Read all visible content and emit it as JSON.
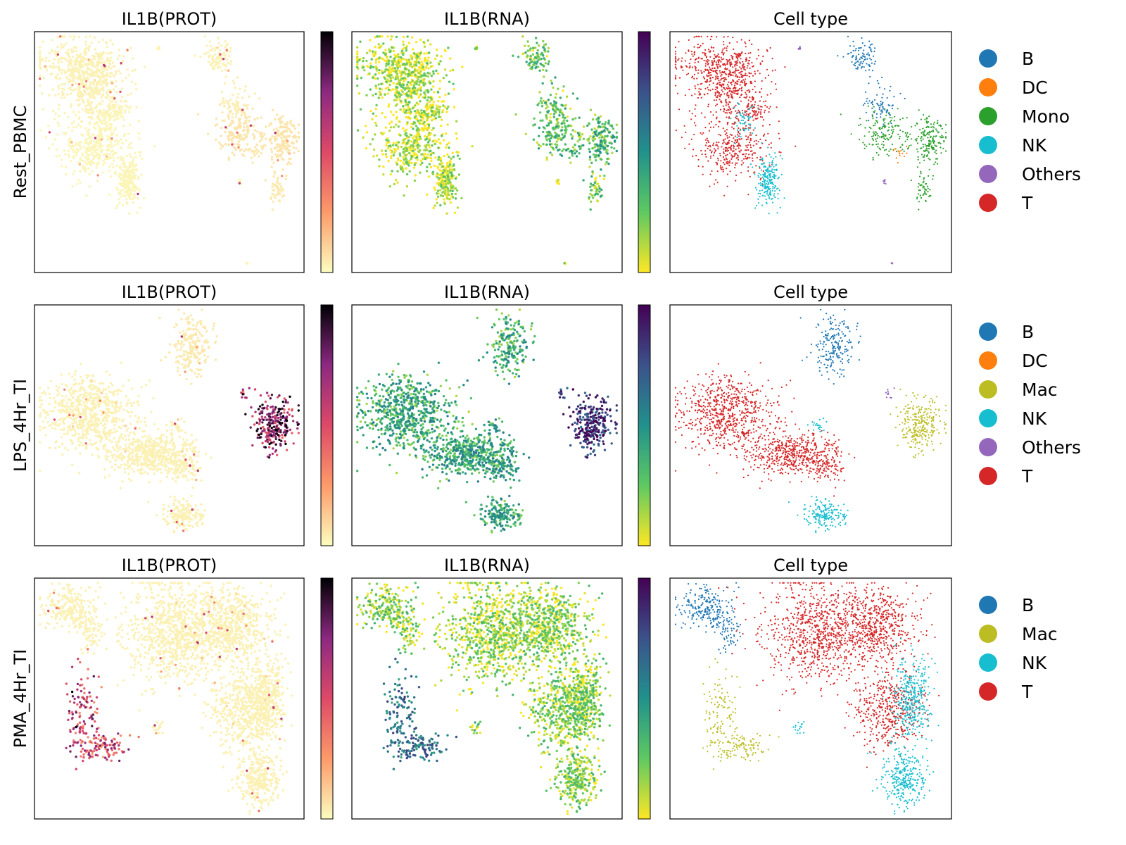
{
  "figure": {
    "rows": [
      {
        "row_label": "Rest_PBMC",
        "panels": {
          "prot": {
            "title": "IL1B(PROT)",
            "colormap": "magma_r"
          },
          "rna": {
            "title": "IL1B(RNA)",
            "colormap": "viridis_r"
          },
          "celltype": {
            "title": "Cell type"
          }
        },
        "legend": [
          {
            "label": "B",
            "color": "#1f77b4"
          },
          {
            "label": "DC",
            "color": "#ff7f0e"
          },
          {
            "label": "Mono",
            "color": "#2ca02c"
          },
          {
            "label": "NK",
            "color": "#17becf"
          },
          {
            "label": "Others",
            "color": "#9467bd"
          },
          {
            "label": "T",
            "color": "#d62728"
          }
        ]
      },
      {
        "row_label": "LPS_4Hr_TI",
        "panels": {
          "prot": {
            "title": "IL1B(PROT)",
            "colormap": "magma_r"
          },
          "rna": {
            "title": "IL1B(RNA)",
            "colormap": "viridis_r"
          },
          "celltype": {
            "title": "Cell type"
          }
        },
        "legend": [
          {
            "label": "B",
            "color": "#1f77b4"
          },
          {
            "label": "DC",
            "color": "#ff7f0e"
          },
          {
            "label": "Mac",
            "color": "#bcbd22"
          },
          {
            "label": "NK",
            "color": "#17becf"
          },
          {
            "label": "Others",
            "color": "#9467bd"
          },
          {
            "label": "T",
            "color": "#d62728"
          }
        ]
      },
      {
        "row_label": "PMA_4Hr_TI",
        "panels": {
          "prot": {
            "title": "IL1B(PROT)",
            "colormap": "magma_r"
          },
          "rna": {
            "title": "IL1B(RNA)",
            "colormap": "viridis_r"
          },
          "celltype": {
            "title": "Cell type"
          }
        },
        "legend": [
          {
            "label": "B",
            "color": "#1f77b4"
          },
          {
            "label": "Mac",
            "color": "#bcbd22"
          },
          {
            "label": "NK",
            "color": "#17becf"
          },
          {
            "label": "T",
            "color": "#d62728"
          }
        ]
      }
    ]
  },
  "chart_data": [
    {
      "type": "scatter",
      "row": "Rest_PBMC",
      "title": "IL1B(PROT)",
      "xlabel": "",
      "ylabel": "Rest_PBMC",
      "colorbar": true,
      "colormap": "magma_r",
      "clusters": [
        {
          "cx": 0.17,
          "cy": 0.13,
          "sx": 0.1,
          "sy": 0.07,
          "n": 320,
          "cell_type": "T",
          "prot": 0.03,
          "rna": 0.06
        },
        {
          "cx": 0.22,
          "cy": 0.23,
          "sx": 0.09,
          "sy": 0.1,
          "n": 360,
          "cell_type": "T",
          "prot": 0.03,
          "rna": 0.06
        },
        {
          "cx": 0.22,
          "cy": 0.48,
          "sx": 0.09,
          "sy": 0.09,
          "n": 330,
          "cell_type": "T",
          "prot": 0.02,
          "rna": 0.05
        },
        {
          "cx": 0.3,
          "cy": 0.33,
          "sx": 0.04,
          "sy": 0.03,
          "n": 60,
          "cell_type": "T",
          "prot": 0.02,
          "rna": 0.06
        },
        {
          "cx": 0.26,
          "cy": 0.37,
          "sx": 0.03,
          "sy": 0.05,
          "n": 50,
          "cell_type": "NK",
          "prot": 0.02,
          "rna": 0.05
        },
        {
          "cx": 0.35,
          "cy": 0.62,
          "sx": 0.03,
          "sy": 0.07,
          "n": 200,
          "cell_type": "NK",
          "prot": 0.02,
          "rna": 0.07
        },
        {
          "cx": 0.68,
          "cy": 0.1,
          "sx": 0.04,
          "sy": 0.04,
          "n": 90,
          "cell_type": "B",
          "prot": 0.03,
          "rna": 0.2
        },
        {
          "cx": 0.75,
          "cy": 0.3,
          "sx": 0.04,
          "sy": 0.07,
          "n": 70,
          "cell_type": "B",
          "prot": 0.04,
          "rna": 0.22
        },
        {
          "cx": 0.76,
          "cy": 0.42,
          "sx": 0.06,
          "sy": 0.06,
          "n": 150,
          "cell_type": "Mono",
          "prot": 0.06,
          "rna": 0.25
        },
        {
          "cx": 0.92,
          "cy": 0.45,
          "sx": 0.04,
          "sy": 0.07,
          "n": 170,
          "cell_type": "Mono",
          "prot": 0.06,
          "rna": 0.3
        },
        {
          "cx": 0.9,
          "cy": 0.65,
          "sx": 0.02,
          "sy": 0.05,
          "n": 50,
          "cell_type": "Mono",
          "prot": 0.05,
          "rna": 0.2
        },
        {
          "cx": 0.81,
          "cy": 0.51,
          "sx": 0.02,
          "sy": 0.02,
          "n": 15,
          "cell_type": "DC",
          "prot": 0.05,
          "rna": 0.3
        },
        {
          "cx": 0.46,
          "cy": 0.07,
          "sx": 0.005,
          "sy": 0.005,
          "n": 8,
          "cell_type": "Others",
          "prot": 0.02,
          "rna": 0.05
        },
        {
          "cx": 0.76,
          "cy": 0.62,
          "sx": 0.005,
          "sy": 0.01,
          "n": 8,
          "cell_type": "Others",
          "prot": 0.02,
          "rna": 0.05
        },
        {
          "cx": 0.79,
          "cy": 0.96,
          "sx": 0.003,
          "sy": 0.003,
          "n": 3,
          "cell_type": "Others",
          "prot": 0.02,
          "rna": 0.05
        }
      ]
    },
    {
      "type": "scatter",
      "row": "Rest_PBMC",
      "title": "IL1B(RNA)",
      "xlabel": "",
      "ylabel": "",
      "colorbar": true,
      "colormap": "viridis_r",
      "clusters": "same as IL1B(PROT) in this row"
    },
    {
      "type": "scatter",
      "row": "Rest_PBMC",
      "title": "Cell type",
      "xlabel": "",
      "ylabel": "",
      "legend": [
        "B",
        "DC",
        "Mono",
        "NK",
        "Others",
        "T"
      ],
      "legend_placement": "right",
      "clusters": "same as IL1B(PROT) in this row"
    },
    {
      "type": "scatter",
      "row": "LPS_4Hr_TI",
      "title": "IL1B(PROT)",
      "xlabel": "",
      "ylabel": "LPS_4Hr_TI",
      "colorbar": true,
      "colormap": "magma_r",
      "clusters": [
        {
          "cx": 0.2,
          "cy": 0.45,
          "sx": 0.11,
          "sy": 0.1,
          "n": 700,
          "cell_type": "T",
          "prot": 0.03,
          "rna": 0.35
        },
        {
          "cx": 0.42,
          "cy": 0.62,
          "sx": 0.1,
          "sy": 0.06,
          "n": 450,
          "cell_type": "T",
          "prot": 0.03,
          "rna": 0.38
        },
        {
          "cx": 0.55,
          "cy": 0.65,
          "sx": 0.05,
          "sy": 0.05,
          "n": 150,
          "cell_type": "T",
          "prot": 0.03,
          "rna": 0.38
        },
        {
          "cx": 0.55,
          "cy": 0.87,
          "sx": 0.05,
          "sy": 0.04,
          "n": 170,
          "cell_type": "NK",
          "prot": 0.03,
          "rna": 0.38
        },
        {
          "cx": 0.58,
          "cy": 0.17,
          "sx": 0.05,
          "sy": 0.09,
          "n": 200,
          "cell_type": "B",
          "prot": 0.05,
          "rna": 0.35
        },
        {
          "cx": 0.89,
          "cy": 0.5,
          "sx": 0.05,
          "sy": 0.07,
          "n": 260,
          "cell_type": "Mac",
          "prot": 0.7,
          "rna": 0.85
        },
        {
          "cx": 0.52,
          "cy": 0.5,
          "sx": 0.02,
          "sy": 0.02,
          "n": 20,
          "cell_type": "NK",
          "prot": 0.03,
          "rna": 0.4
        },
        {
          "cx": 0.78,
          "cy": 0.37,
          "sx": 0.01,
          "sy": 0.02,
          "n": 10,
          "cell_type": "Others",
          "prot": 0.5,
          "rna": 0.7
        }
      ]
    },
    {
      "type": "scatter",
      "row": "LPS_4Hr_TI",
      "title": "IL1B(RNA)",
      "xlabel": "",
      "ylabel": "",
      "colorbar": true,
      "colormap": "viridis_r",
      "clusters": "same as IL1B(PROT) in this row"
    },
    {
      "type": "scatter",
      "row": "LPS_4Hr_TI",
      "title": "Cell type",
      "xlabel": "",
      "ylabel": "",
      "legend": [
        "B",
        "DC",
        "Mac",
        "NK",
        "Others",
        "T"
      ],
      "legend_placement": "right",
      "clusters": "same as IL1B(PROT) in this row"
    },
    {
      "type": "scatter",
      "row": "PMA_4Hr_TI",
      "title": "IL1B(PROT)",
      "xlabel": "",
      "ylabel": "PMA_4Hr_TI",
      "colorbar": true,
      "colormap": "magma_r",
      "clusters": [
        {
          "cx": 0.12,
          "cy": 0.12,
          "sx": 0.06,
          "sy": 0.06,
          "n": 200,
          "cell_type": "B",
          "prot": 0.03,
          "rna": 0.15
        },
        {
          "cx": 0.2,
          "cy": 0.22,
          "sx": 0.03,
          "sy": 0.06,
          "n": 80,
          "cell_type": "B",
          "prot": 0.03,
          "rna": 0.15
        },
        {
          "cx": 0.18,
          "cy": 0.58,
          "sx": 0.04,
          "sy": 0.12,
          "n": 110,
          "cell_type": "Mac",
          "prot": 0.55,
          "rna": 0.6
        },
        {
          "cx": 0.25,
          "cy": 0.7,
          "sx": 0.06,
          "sy": 0.04,
          "n": 110,
          "cell_type": "Mac",
          "prot": 0.5,
          "rna": 0.6
        },
        {
          "cx": 0.53,
          "cy": 0.22,
          "sx": 0.14,
          "sy": 0.14,
          "n": 900,
          "cell_type": "T",
          "prot": 0.03,
          "rna": 0.12
        },
        {
          "cx": 0.74,
          "cy": 0.2,
          "sx": 0.09,
          "sy": 0.1,
          "n": 500,
          "cell_type": "T",
          "prot": 0.03,
          "rna": 0.12
        },
        {
          "cx": 0.78,
          "cy": 0.55,
          "sx": 0.08,
          "sy": 0.1,
          "n": 450,
          "cell_type": "T",
          "prot": 0.03,
          "rna": 0.15
        },
        {
          "cx": 0.86,
          "cy": 0.5,
          "sx": 0.05,
          "sy": 0.11,
          "n": 350,
          "cell_type": "NK",
          "prot": 0.03,
          "rna": 0.15
        },
        {
          "cx": 0.83,
          "cy": 0.83,
          "sx": 0.05,
          "sy": 0.08,
          "n": 300,
          "cell_type": "NK",
          "prot": 0.03,
          "rna": 0.15
        },
        {
          "cx": 0.46,
          "cy": 0.62,
          "sx": 0.02,
          "sy": 0.02,
          "n": 15,
          "cell_type": "NK",
          "prot": 0.03,
          "rna": 0.2
        }
      ]
    },
    {
      "type": "scatter",
      "row": "PMA_4Hr_TI",
      "title": "IL1B(RNA)",
      "xlabel": "",
      "ylabel": "",
      "colorbar": true,
      "colormap": "viridis_r",
      "clusters": "same as IL1B(PROT) in this row"
    },
    {
      "type": "scatter",
      "row": "PMA_4Hr_TI",
      "title": "Cell type",
      "xlabel": "",
      "ylabel": "",
      "legend": [
        "B",
        "Mac",
        "NK",
        "T"
      ],
      "legend_placement": "right",
      "clusters": "same as IL1B(PROT) in this row"
    }
  ]
}
